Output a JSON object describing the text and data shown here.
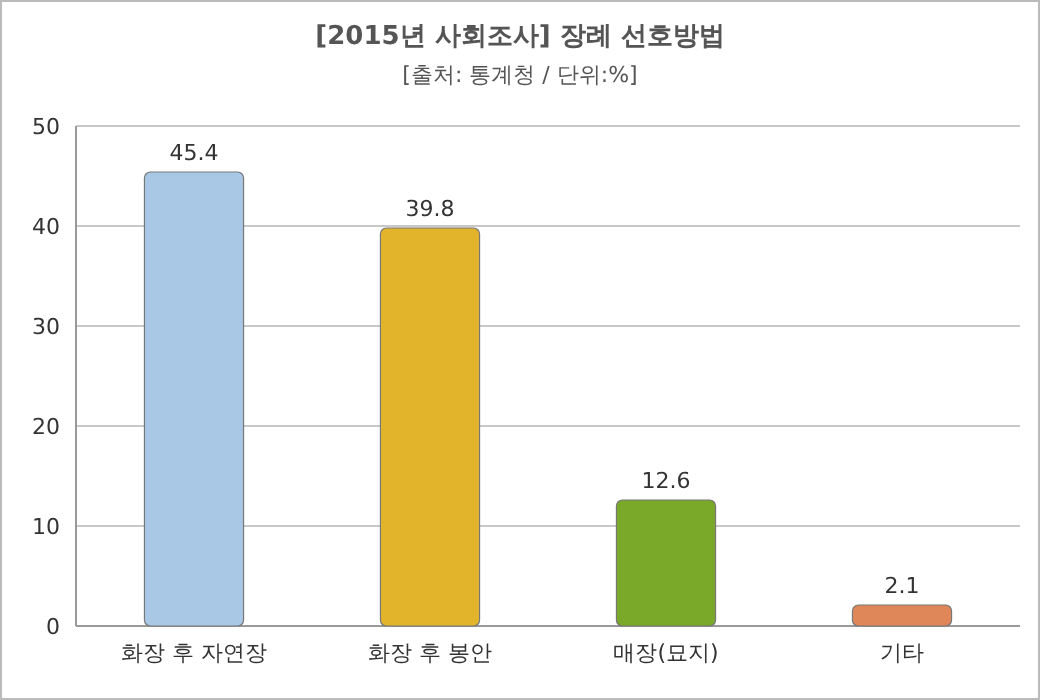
{
  "chart_data": {
    "type": "bar",
    "title": "[2015년 사회조사] 장례 선호방법",
    "subtitle": "[출처: 통계청 / 단위:%]",
    "categories": [
      "화장 후 자연장",
      "화장 후 봉안",
      "매장(묘지)",
      "기타"
    ],
    "values": [
      45.4,
      39.8,
      12.6,
      2.1
    ],
    "colors": [
      "#a9c8e6",
      "#e2b42c",
      "#7aa828",
      "#e0875a"
    ],
    "ylim": [
      0,
      50
    ],
    "yticks": [
      0,
      10,
      20,
      30,
      40,
      50
    ],
    "grid": "y",
    "data_labels": true
  }
}
